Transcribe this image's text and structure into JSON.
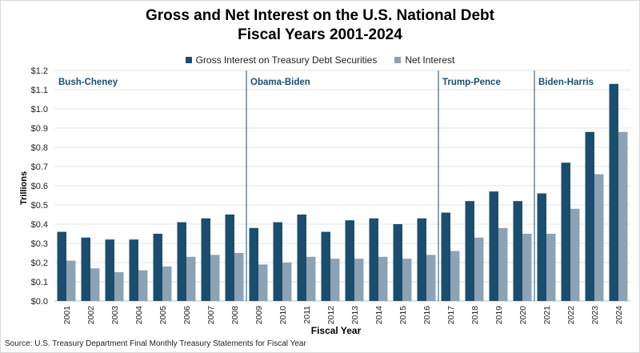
{
  "chart_data": {
    "type": "bar",
    "title_line1": "Gross and Net Interest on the U.S. National Debt",
    "title_line2": "Fiscal Years 2001-2024",
    "xlabel": "Fiscal Year",
    "ylabel": "Trillions",
    "ylim": [
      0,
      1.2
    ],
    "yticks": [
      "$0.0",
      "$0.1",
      "$0.2",
      "$0.3",
      "$0.4",
      "$0.5",
      "$0.6",
      "$0.7",
      "$0.8",
      "$0.9",
      "$1.0",
      "$1.1",
      "$1.2"
    ],
    "grid": true,
    "legend_position": "top-center",
    "categories": [
      "2001",
      "2002",
      "2003",
      "2004",
      "2005",
      "2006",
      "2007",
      "2008",
      "2009",
      "2010",
      "2011",
      "2012",
      "2013",
      "2014",
      "2015",
      "2016",
      "2017",
      "2018",
      "2019",
      "2020",
      "2021",
      "2022",
      "2023",
      "2024"
    ],
    "series": [
      {
        "name": "Gross Interest on Treasury Debt Securities",
        "color": "#1b4e6e",
        "values": [
          0.36,
          0.33,
          0.32,
          0.32,
          0.35,
          0.41,
          0.43,
          0.45,
          0.38,
          0.41,
          0.45,
          0.36,
          0.42,
          0.43,
          0.4,
          0.43,
          0.46,
          0.52,
          0.57,
          0.52,
          0.56,
          0.72,
          0.88,
          1.13
        ]
      },
      {
        "name": "Net Interest",
        "color": "#8da3b5",
        "values": [
          0.21,
          0.17,
          0.15,
          0.16,
          0.18,
          0.23,
          0.24,
          0.25,
          0.19,
          0.2,
          0.23,
          0.22,
          0.22,
          0.23,
          0.22,
          0.24,
          0.26,
          0.33,
          0.38,
          0.35,
          0.35,
          0.48,
          0.66,
          0.88
        ]
      }
    ],
    "annotations": [
      {
        "label": "Bush-Cheney",
        "start_index": 0
      },
      {
        "label": "Obama-Biden",
        "start_index": 8
      },
      {
        "label": "Trump-Pence",
        "start_index": 16
      },
      {
        "label": "Biden-Harris",
        "start_index": 20
      }
    ]
  },
  "source": "Source: U.S. Treasury Department Final Monthly Treasury Statements for Fiscal Year"
}
